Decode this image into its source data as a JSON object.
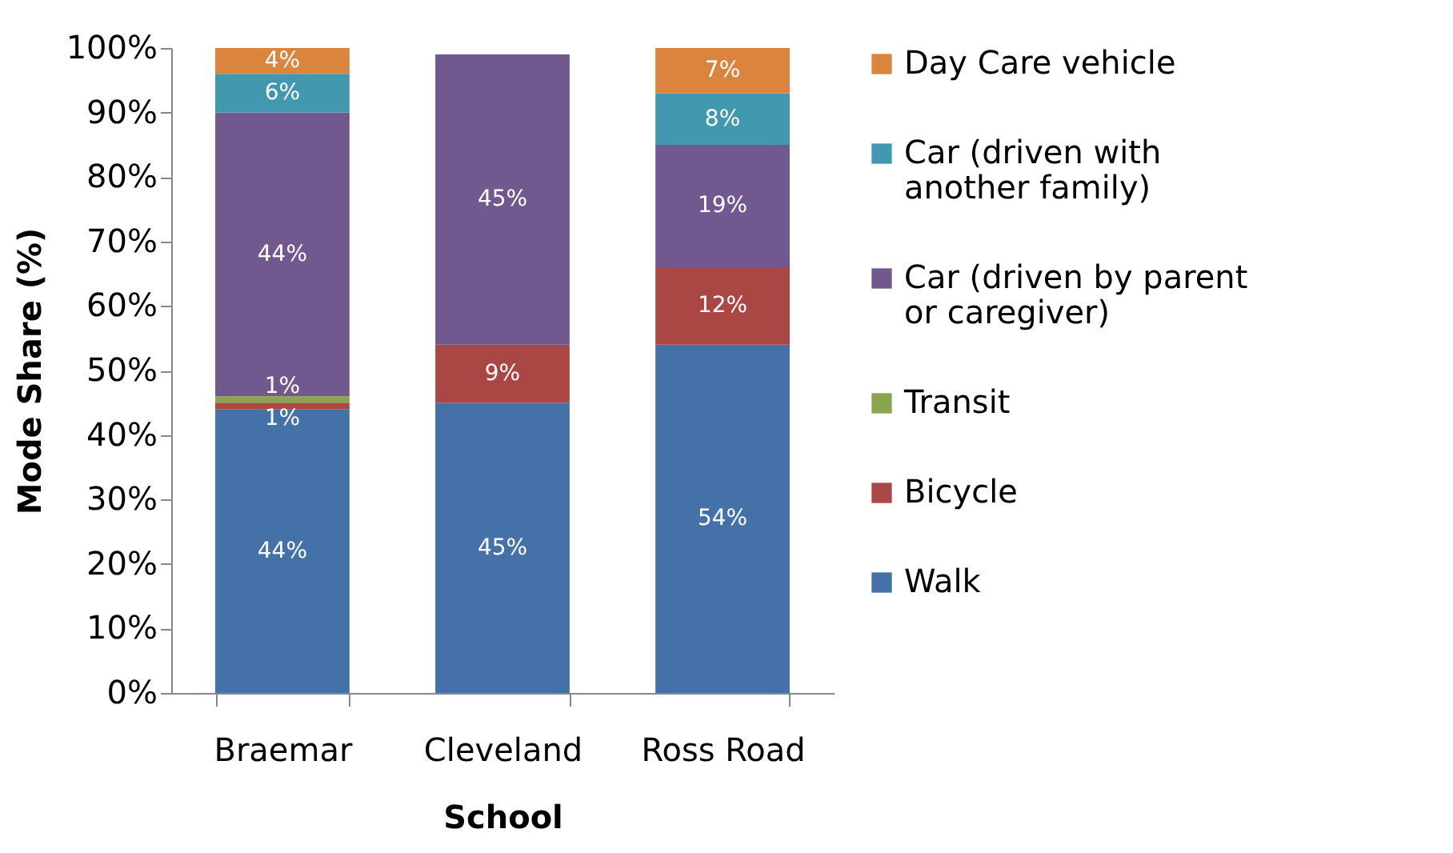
{
  "chart_data": {
    "type": "bar",
    "stacked": true,
    "xlabel": "School",
    "ylabel": "Mode Share (%)",
    "categories": [
      "Braemar",
      "Cleveland",
      "Ross Road"
    ],
    "series": [
      {
        "name": "Walk",
        "color": "#4472a8",
        "values": [
          44,
          45,
          54
        ],
        "value_labels": [
          "44%",
          "45%",
          "54%"
        ]
      },
      {
        "name": "Bicycle",
        "color": "#aa4643",
        "values": [
          1,
          9,
          12
        ],
        "value_labels": [
          "1%",
          "9%",
          "12%"
        ]
      },
      {
        "name": "Transit",
        "color": "#89a54e",
        "values": [
          1,
          null,
          null
        ],
        "value_labels": [
          "1%",
          null,
          null
        ]
      },
      {
        "name": "Car (driven by parent or caregiver)",
        "color": "#71588f",
        "values": [
          44,
          45,
          19
        ],
        "value_labels": [
          "44%",
          "45%",
          "19%"
        ]
      },
      {
        "name": "Car (driven with another family)",
        "color": "#4198af",
        "values": [
          6,
          null,
          8
        ],
        "value_labels": [
          "6%",
          null,
          "8%"
        ]
      },
      {
        "name": "Day Care vehicle",
        "color": "#db843d",
        "values": [
          4,
          null,
          7
        ],
        "value_labels": [
          "4%",
          null,
          "7%"
        ]
      }
    ],
    "ylim": [
      0,
      100
    ],
    "yticks": [
      {
        "value": 0,
        "label": "0%"
      },
      {
        "value": 10,
        "label": "10%"
      },
      {
        "value": 20,
        "label": "20%"
      },
      {
        "value": 30,
        "label": "30%"
      },
      {
        "value": 40,
        "label": "40%"
      },
      {
        "value": 50,
        "label": "50%"
      },
      {
        "value": 60,
        "label": "60%"
      },
      {
        "value": 70,
        "label": "70%"
      },
      {
        "value": 80,
        "label": "80%"
      },
      {
        "value": 90,
        "label": "90%"
      },
      {
        "value": 100,
        "label": "100%"
      }
    ],
    "grid": false,
    "legend": "right"
  }
}
